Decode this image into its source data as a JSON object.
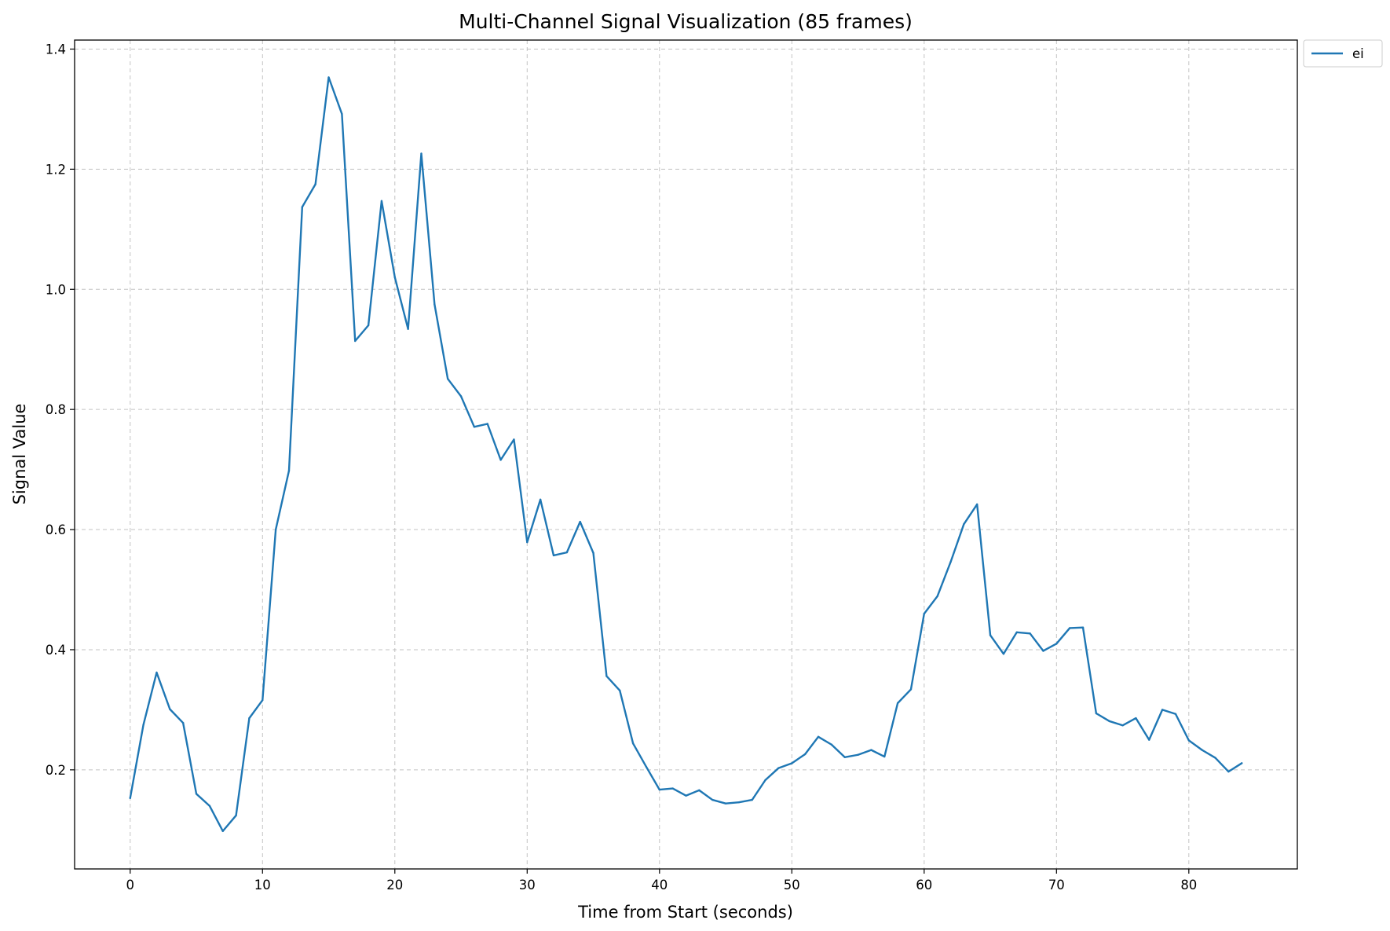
{
  "chart_data": {
    "type": "line",
    "title": "Multi-Channel Signal Visualization (85 frames)",
    "xlabel": "Time from Start (seconds)",
    "ylabel": "Signal Value",
    "xlim": [
      -4.2,
      88.2
    ],
    "ylim": [
      0.035,
      1.415
    ],
    "xticks": [
      0,
      10,
      20,
      30,
      40,
      50,
      60,
      70,
      80
    ],
    "yticks": [
      0.2,
      0.4,
      0.6,
      0.8,
      1.0,
      1.2,
      1.4
    ],
    "ytick_labels": [
      "0.2",
      "0.4",
      "0.6",
      "0.8",
      "1.0",
      "1.2",
      "1.4"
    ],
    "grid": true,
    "legend_position": "outside-top-right",
    "series": [
      {
        "name": "ei",
        "color": "#1f77b4",
        "x": [
          0,
          1,
          2,
          3,
          4,
          5,
          6,
          7,
          8,
          9,
          10,
          11,
          12,
          13,
          14,
          15,
          16,
          17,
          18,
          19,
          20,
          21,
          22,
          23,
          24,
          25,
          26,
          27,
          28,
          29,
          30,
          31,
          32,
          33,
          34,
          35,
          36,
          37,
          38,
          39,
          40,
          41,
          42,
          43,
          44,
          45,
          46,
          47,
          48,
          49,
          50,
          51,
          52,
          53,
          54,
          55,
          56,
          57,
          58,
          59,
          60,
          61,
          62,
          63,
          64,
          65,
          66,
          67,
          68,
          69,
          70,
          71,
          72,
          73,
          74,
          75,
          76,
          77,
          78,
          79,
          80,
          81,
          82,
          83,
          84
        ],
        "values": [
          0.153,
          0.275,
          0.362,
          0.301,
          0.278,
          0.16,
          0.14,
          0.098,
          0.124,
          0.286,
          0.316,
          0.6,
          0.698,
          1.137,
          1.175,
          1.353,
          1.292,
          0.914,
          0.94,
          1.147,
          1.02,
          0.934,
          1.226,
          0.975,
          0.851,
          0.822,
          0.771,
          0.776,
          0.716,
          0.75,
          0.579,
          0.65,
          0.557,
          0.562,
          0.613,
          0.561,
          0.356,
          0.332,
          0.244,
          0.205,
          0.167,
          0.169,
          0.157,
          0.166,
          0.15,
          0.144,
          0.146,
          0.15,
          0.183,
          0.203,
          0.211,
          0.226,
          0.255,
          0.242,
          0.221,
          0.225,
          0.233,
          0.222,
          0.311,
          0.334,
          0.46,
          0.489,
          0.546,
          0.609,
          0.642,
          0.424,
          0.393,
          0.429,
          0.427,
          0.398,
          0.41,
          0.436,
          0.437,
          0.294,
          0.281,
          0.274,
          0.286,
          0.25,
          0.3,
          0.293,
          0.249,
          0.233,
          0.22,
          0.197,
          0.211
        ]
      }
    ]
  }
}
